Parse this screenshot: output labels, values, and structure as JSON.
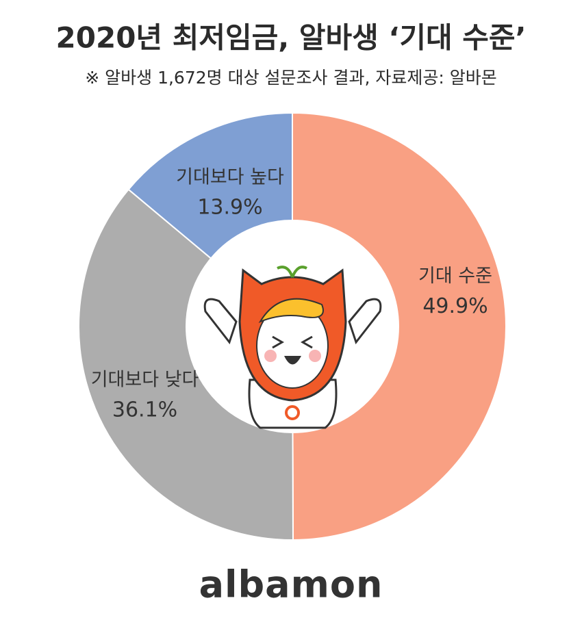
{
  "chart_data": {
    "type": "pie",
    "title": "2020년 최저임금, 알바생 ‘기대 수준’",
    "subtitle": "※ 알바생 1,672명 대상 설문조사 결과,  자료제공: 알바몬",
    "categories": [
      "기대 수준",
      "기대보다 낮다",
      "기대보다 높다"
    ],
    "values": [
      49.9,
      36.1,
      13.9
    ],
    "value_labels": [
      "49.9%",
      "36.1%",
      "13.9%"
    ],
    "colors": [
      "#f9a083",
      "#adadad",
      "#7f9fd3"
    ],
    "logo": "albamon"
  }
}
